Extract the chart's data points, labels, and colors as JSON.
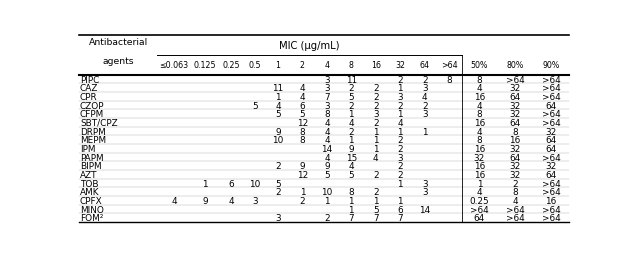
{
  "col_headers_row2": [
    "≤0.063",
    "0.125",
    "0.25",
    "0.5",
    "1",
    "2",
    "4",
    "8",
    "16",
    "32",
    "64",
    ">64",
    "50%",
    "80%",
    "90%"
  ],
  "rows": [
    [
      "PIPC",
      "",
      "",
      "",
      "",
      "",
      "",
      "3",
      "11",
      "",
      "2",
      "2",
      "8",
      "8",
      ">64",
      ">64"
    ],
    [
      "CAZ",
      "",
      "",
      "",
      "",
      "11",
      "4",
      "3",
      "2",
      "2",
      "1",
      "3",
      "",
      "4",
      "32",
      ">64"
    ],
    [
      "CPR",
      "",
      "",
      "",
      "",
      "1",
      "4",
      "7",
      "5",
      "2",
      "3",
      "4",
      "",
      "16",
      "64",
      ">64"
    ],
    [
      "CZOP",
      "",
      "",
      "",
      "5",
      "4",
      "6",
      "3",
      "2",
      "2",
      "2",
      "2",
      "",
      "4",
      "32",
      "64"
    ],
    [
      "CFPM",
      "",
      "",
      "",
      "",
      "5",
      "5",
      "8",
      "1",
      "3",
      "1",
      "3",
      "",
      "8",
      "32",
      ">64"
    ],
    [
      "SBT/CPZ",
      "",
      "",
      "",
      "",
      "",
      "12",
      "4",
      "4",
      "2",
      "4",
      "",
      "",
      "16",
      "64",
      ">64"
    ],
    [
      "DRPM",
      "",
      "",
      "",
      "",
      "9",
      "8",
      "4",
      "2",
      "1",
      "1",
      "1",
      "",
      "4",
      "8",
      "32"
    ],
    [
      "MEPM",
      "",
      "",
      "",
      "",
      "10",
      "8",
      "4",
      "1",
      "1",
      "2",
      "",
      "",
      "8",
      "16",
      "64"
    ],
    [
      "IPM",
      "",
      "",
      "",
      "",
      "",
      "",
      "14",
      "9",
      "1",
      "2",
      "",
      "",
      "16",
      "32",
      "64"
    ],
    [
      "PAPM",
      "",
      "",
      "",
      "",
      "",
      "",
      "4",
      "15",
      "4",
      "3",
      "",
      "",
      "32",
      "64",
      ">64"
    ],
    [
      "BIPM",
      "",
      "",
      "",
      "",
      "2",
      "9",
      "9",
      "4",
      "",
      "2",
      "",
      "",
      "16",
      "32",
      "32"
    ],
    [
      "AZT",
      "",
      "",
      "",
      "",
      "",
      "12",
      "5",
      "5",
      "2",
      "2",
      "",
      "",
      "16",
      "32",
      "64"
    ],
    [
      "TOB",
      "",
      "1",
      "6",
      "10",
      "5",
      "",
      "",
      "",
      "",
      "1",
      "3",
      "",
      "1",
      "2",
      ">64"
    ],
    [
      "AMK",
      "",
      "",
      "",
      "",
      "2",
      "1",
      "10",
      "8",
      "2",
      "",
      "3",
      "",
      "4",
      "8",
      ">64"
    ],
    [
      "CPFX",
      "4",
      "9",
      "4",
      "3",
      "",
      "2",
      "1",
      "1",
      "1",
      "1",
      "",
      "",
      "0.25",
      "4",
      "16"
    ],
    [
      "MINO",
      "",
      "",
      "",
      "",
      "",
      "",
      "",
      "1",
      "5",
      "6",
      "14",
      "",
      ">64",
      ">64",
      ">64"
    ],
    [
      "FOM²",
      "",
      "",
      "",
      "",
      "3",
      "",
      "2",
      "7",
      "7",
      "7",
      "",
      "",
      "64",
      ">64",
      ">64"
    ]
  ],
  "background_color": "#ffffff",
  "text_color": "#000000",
  "font_size": 7.2
}
